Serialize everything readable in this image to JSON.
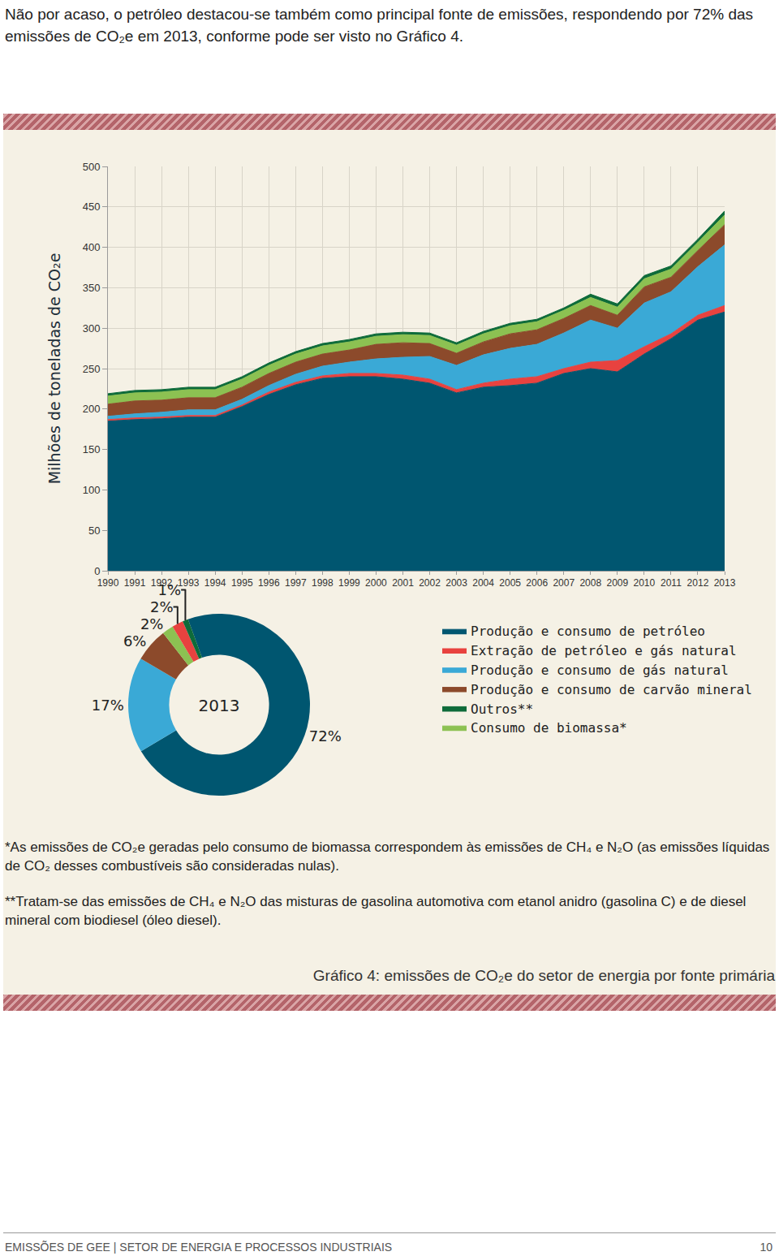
{
  "text": {
    "intro": "Não por acaso, o petróleo destacou-se também como principal fonte de emissões, respondendo por 72% das emissões de CO₂e em 2013, conforme pode ser visto no Gráfico 4.",
    "notes": [
      "*As emissões de CO₂e geradas pelo consumo de biomassa correspondem às emissões de CH₄ e N₂O (as emissões líquidas de CO₂ desses combustíveis são consideradas nulas).",
      "**Tratam-se das emissões de CH₄ e N₂O das misturas de gasolina automotiva com etanol anidro (gasolina C) e de diesel mineral com biodiesel (óleo diesel)."
    ],
    "caption": "Gráfico 4: emissões de CO₂e do setor de energia por fonte primária",
    "footer": "EMISSÕES DE GEE | SETOR DE ENERGIA E PROCESSOS INDUSTRIAIS",
    "page": 10
  },
  "chart_data": [
    {
      "type": "area",
      "stacked": true,
      "grid": true,
      "y_label": "Milhões de toneladas de CO₂e",
      "x": [
        1990,
        1991,
        1992,
        1993,
        1994,
        1995,
        1996,
        1997,
        1998,
        1999,
        2000,
        2001,
        2002,
        2003,
        2004,
        2005,
        2006,
        2007,
        2008,
        2009,
        2010,
        2011,
        2012,
        2013
      ],
      "xlim": [
        1990,
        2013
      ],
      "xticks": [
        1990,
        1991,
        1992,
        1993,
        1994,
        1995,
        1996,
        1997,
        1998,
        1999,
        2000,
        2001,
        2002,
        2003,
        2004,
        2005,
        2006,
        2007,
        2008,
        2009,
        2010,
        2011,
        2012,
        2013
      ],
      "ylim": [
        0,
        500
      ],
      "yticks": [
        0,
        50,
        100,
        150,
        200,
        250,
        300,
        350,
        400,
        450,
        500
      ],
      "series": [
        {
          "name": "Produção e consumo de petróleo",
          "color": "#005670",
          "values": [
            185,
            187,
            188,
            190,
            190,
            203,
            218,
            230,
            238,
            240,
            240,
            237,
            232,
            220,
            227,
            229,
            232,
            244,
            250,
            246,
            268,
            287,
            310,
            320
          ]
        },
        {
          "name": "Extração de petróleo e gás natural",
          "color": "#e8423f",
          "values": [
            2,
            2,
            2,
            2,
            2,
            2,
            3,
            3,
            3,
            4,
            4,
            5,
            5,
            4,
            5,
            8,
            8,
            6,
            8,
            14,
            9,
            6,
            6,
            8
          ]
        },
        {
          "name": "Produção e consumo de gás natural",
          "color": "#3aa9d6",
          "values": [
            4,
            5,
            6,
            7,
            7,
            7,
            8,
            10,
            12,
            14,
            18,
            22,
            28,
            30,
            35,
            38,
            40,
            44,
            52,
            40,
            54,
            52,
            60,
            75
          ]
        },
        {
          "name": "Produção e consumo de carvão mineral",
          "color": "#8c4a2b",
          "values": [
            15,
            16,
            15,
            15,
            15,
            15,
            15,
            15,
            15,
            15,
            18,
            18,
            16,
            15,
            16,
            18,
            18,
            18,
            18,
            16,
            20,
            18,
            20,
            25
          ]
        },
        {
          "name": "Consumo de biomassa*",
          "color": "#8cc152",
          "values": [
            10,
            10,
            10,
            10,
            10,
            10,
            10,
            10,
            10,
            10,
            10,
            10,
            10,
            10,
            10,
            10,
            10,
            10,
            10,
            10,
            10,
            10,
            10,
            12
          ]
        },
        {
          "name": "Outros**",
          "color": "#0e6b3a",
          "values": [
            3,
            3,
            3,
            3,
            3,
            3,
            3,
            3,
            3,
            3,
            3,
            3,
            3,
            3,
            3,
            3,
            3,
            3,
            4,
            4,
            4,
            4,
            4,
            5
          ]
        }
      ]
    },
    {
      "type": "pie",
      "title": "2013",
      "labels": [
        "Produção e consumo de petróleo",
        "Produção e consumo de gás natural",
        "Produção e consumo de carvão mineral",
        "Consumo de biomassa*",
        "Extração de petróleo e gás natural",
        "Outros**"
      ],
      "values": [
        72,
        17,
        6,
        2,
        2,
        1
      ],
      "value_labels": [
        "72%",
        "17%",
        "6%",
        "2%",
        "2%",
        "1%"
      ],
      "colors": [
        "#005670",
        "#3aa9d6",
        "#8c4a2b",
        "#8cc152",
        "#e8423f",
        "#0e6b3a"
      ]
    }
  ]
}
